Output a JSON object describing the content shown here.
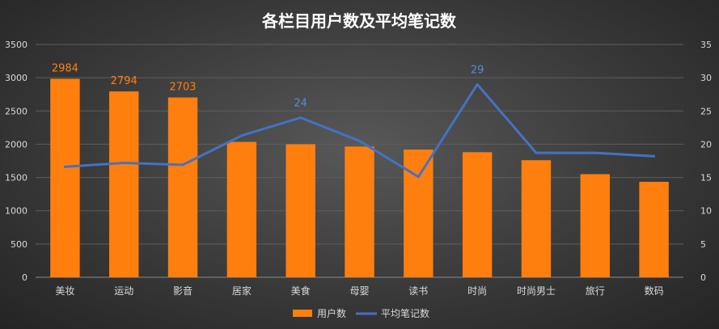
{
  "chart_data": {
    "type": "bar",
    "title": "各栏目用户数及平均笔记数",
    "categories": [
      "美妆",
      "运动",
      "影音",
      "居家",
      "美食",
      "母婴",
      "读书",
      "时尚",
      "时尚男士",
      "旅行",
      "数码"
    ],
    "series": [
      {
        "name": "用户数",
        "type": "bar",
        "axis": "left",
        "color": "#ff7f0e",
        "values": [
          2984,
          2794,
          2703,
          2035,
          2000,
          1965,
          1920,
          1880,
          1760,
          1550,
          1435
        ],
        "data_labels": [
          "2984",
          "2794",
          "2703",
          null,
          null,
          null,
          null,
          null,
          null,
          null,
          null
        ]
      },
      {
        "name": "平均笔记数",
        "type": "line",
        "axis": "right",
        "color": "#4472c4",
        "values": [
          16.6,
          17.2,
          16.9,
          21.3,
          24,
          20.5,
          15.1,
          29,
          18.7,
          18.7,
          18.2
        ],
        "data_labels": [
          null,
          null,
          null,
          null,
          "24",
          null,
          null,
          "29",
          null,
          null,
          null
        ]
      }
    ],
    "y_left": {
      "min": 0,
      "max": 3500,
      "ticks": [
        "0",
        "500",
        "1000",
        "1500",
        "2000",
        "2500",
        "3000",
        "3500"
      ]
    },
    "y_right": {
      "min": 0,
      "max": 35,
      "ticks": [
        "0",
        "5",
        "10",
        "15",
        "20",
        "25",
        "30",
        "35"
      ]
    },
    "grid": true,
    "legend_position": "bottom"
  }
}
